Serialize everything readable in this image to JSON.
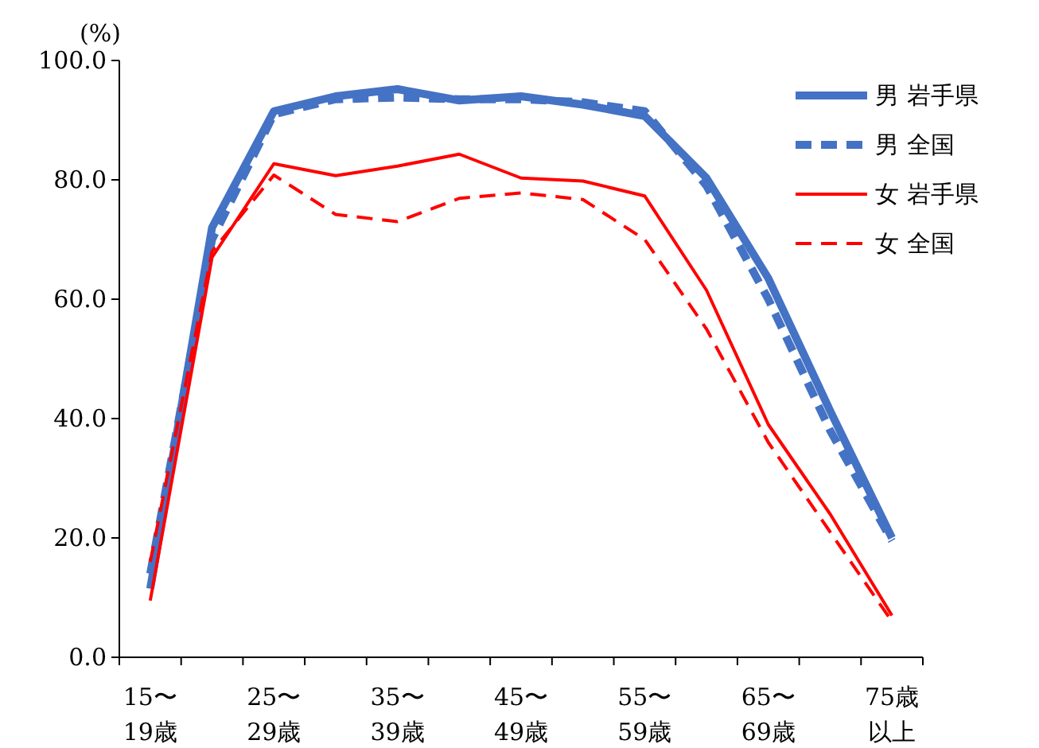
{
  "chart_data": {
    "type": "line",
    "ylabel": "(%)",
    "categories": [
      "15〜19歳",
      null,
      "25〜29歳",
      null,
      "35〜39歳",
      null,
      "45〜49歳",
      null,
      "55〜59歳",
      null,
      "65〜69歳",
      null,
      "75歳以上"
    ],
    "series": [
      {
        "name": "男 岩手県",
        "color": "#4472c4",
        "line_style": "solid",
        "values": [
          11.5,
          72,
          91.5,
          94,
          95.2,
          93.3,
          94,
          92.6,
          90.7,
          80.3,
          63.5,
          41.3,
          20
        ]
      },
      {
        "name": "男 全国",
        "color": "#4472c4",
        "line_style": "dashed",
        "values": [
          14,
          70,
          91,
          93.5,
          93.8,
          93.5,
          93.5,
          93,
          91.5,
          79,
          60,
          38,
          19.5
        ]
      },
      {
        "name": "女 岩手県",
        "color": "#ff0000",
        "line_style": "solid",
        "values": [
          9.5,
          67,
          82.7,
          80.7,
          82.3,
          84.3,
          80.3,
          79.8,
          77.3,
          61.5,
          39,
          24,
          7
        ]
      },
      {
        "name": "女 全国",
        "color": "#ff0000",
        "line_style": "dashed",
        "values": [
          16,
          68,
          80.8,
          74.2,
          73,
          76.9,
          77.8,
          76.7,
          70,
          55,
          36,
          21,
          6
        ]
      }
    ],
    "ylim": [
      0,
      100
    ],
    "yticks": [
      {
        "value": 0,
        "label": "0.0"
      },
      {
        "value": 20,
        "label": "20.0"
      },
      {
        "value": 40,
        "label": "40.0"
      },
      {
        "value": 60,
        "label": "60.0"
      },
      {
        "value": 80,
        "label": "80.0"
      },
      {
        "value": 100,
        "label": "100.0"
      }
    ],
    "legend": "top right",
    "marker": "none",
    "grid": false
  }
}
